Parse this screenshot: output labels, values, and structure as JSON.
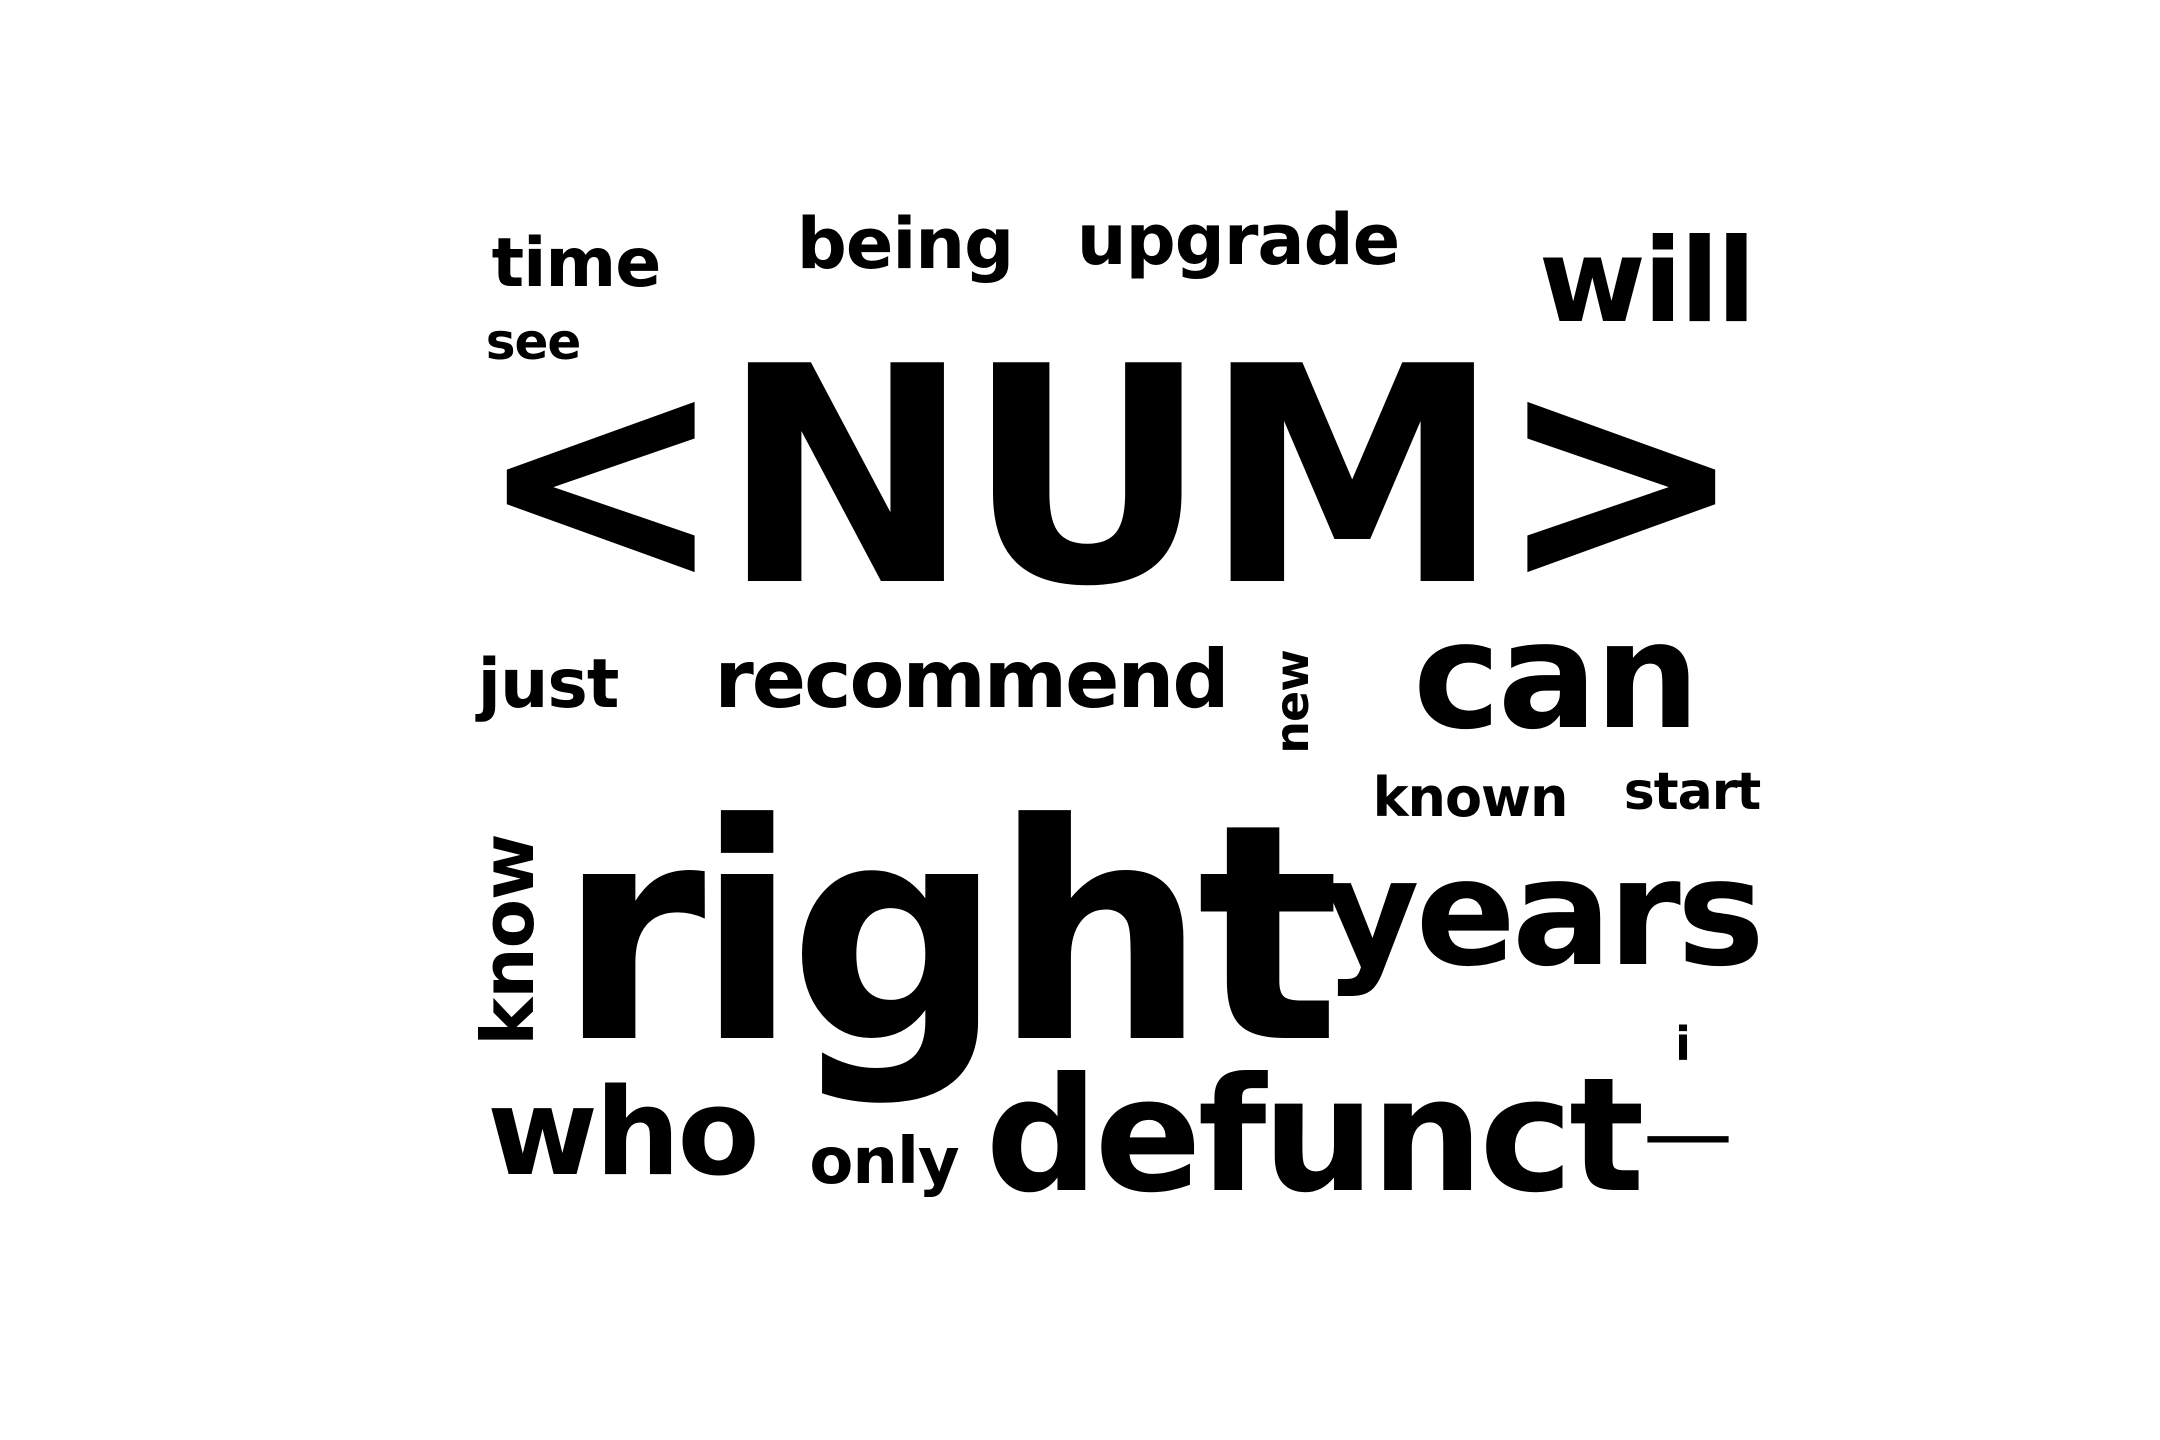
{
  "words": {
    "num": "<NUM>",
    "right": "right",
    "defunct": "defunct",
    "years": "years",
    "can": "can",
    "who": "who",
    "will": "will",
    "recommend": "recommend",
    "upgrade": "upgrade",
    "being": "being",
    "time": "time",
    "just": "just",
    "know": "know",
    "only": "only",
    "known": "known",
    "start": "start",
    "see": "see",
    "new": "new",
    "i": "i",
    "dash": "—"
  },
  "colors": {
    "text": "#000000",
    "background": "#ffffff"
  }
}
